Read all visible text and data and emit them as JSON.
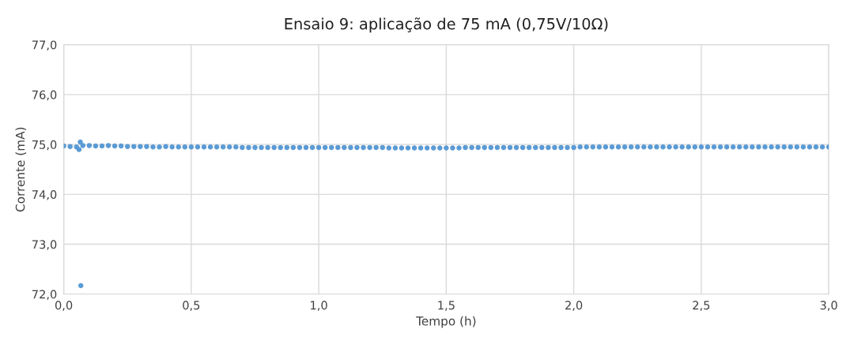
{
  "chart_data": {
    "type": "scatter",
    "title": "Ensaio 9: aplicação de 75 mA (0,75V/10Ω)",
    "xlabel": "Tempo (h)",
    "ylabel": "Corrente (mA)",
    "xlim": [
      0,
      3.0
    ],
    "ylim": [
      72.0,
      77.0
    ],
    "xticks": [
      {
        "value": 0,
        "label": "0,0"
      },
      {
        "value": 0.5,
        "label": "0,5"
      },
      {
        "value": 1.0,
        "label": "1,0"
      },
      {
        "value": 1.5,
        "label": "1,5"
      },
      {
        "value": 2.0,
        "label": "2,0"
      },
      {
        "value": 2.5,
        "label": "2,5"
      },
      {
        "value": 3.0,
        "label": "3,0"
      }
    ],
    "yticks": [
      {
        "value": 72,
        "label": "72,0"
      },
      {
        "value": 73,
        "label": "73,0"
      },
      {
        "value": 74,
        "label": "74,0"
      },
      {
        "value": 75,
        "label": "75,0"
      },
      {
        "value": 76,
        "label": "76,0"
      },
      {
        "value": 77,
        "label": "77,0"
      }
    ],
    "grid": true,
    "marker": "circle",
    "series": [
      {
        "color": "#5b9bd5",
        "x": [
          0,
          0.025,
          0.05,
          0.06,
          0.065,
          0.067,
          0.075,
          0.1,
          0.125,
          0.15,
          0.175,
          0.2,
          0.225,
          0.25,
          0.275,
          0.3,
          0.325,
          0.35,
          0.375,
          0.4,
          0.425,
          0.45,
          0.475,
          0.5,
          0.525,
          0.55,
          0.575,
          0.6,
          0.625,
          0.65,
          0.675,
          0.7,
          0.725,
          0.75,
          0.775,
          0.8,
          0.825,
          0.85,
          0.875,
          0.9,
          0.925,
          0.95,
          0.975,
          1.0,
          1.025,
          1.05,
          1.075,
          1.1,
          1.125,
          1.15,
          1.175,
          1.2,
          1.225,
          1.25,
          1.275,
          1.3,
          1.325,
          1.35,
          1.375,
          1.4,
          1.425,
          1.45,
          1.475,
          1.5,
          1.525,
          1.55,
          1.575,
          1.6,
          1.625,
          1.65,
          1.675,
          1.7,
          1.725,
          1.75,
          1.775,
          1.8,
          1.825,
          1.85,
          1.875,
          1.9,
          1.925,
          1.95,
          1.975,
          2.0,
          2.025,
          2.05,
          2.075,
          2.1,
          2.125,
          2.15,
          2.175,
          2.2,
          2.225,
          2.25,
          2.275,
          2.3,
          2.325,
          2.35,
          2.375,
          2.4,
          2.425,
          2.45,
          2.475,
          2.5,
          2.525,
          2.55,
          2.575,
          2.6,
          2.625,
          2.65,
          2.675,
          2.7,
          2.725,
          2.75,
          2.775,
          2.8,
          2.825,
          2.85,
          2.875,
          2.9,
          2.925,
          2.95,
          2.975,
          3.0
        ],
        "values": [
          74.97,
          74.96,
          74.95,
          74.9,
          75.05,
          72.17,
          74.98,
          74.98,
          74.97,
          74.97,
          74.98,
          74.97,
          74.97,
          74.96,
          74.96,
          74.96,
          74.96,
          74.95,
          74.95,
          74.96,
          74.95,
          74.95,
          74.95,
          74.95,
          74.95,
          74.95,
          74.95,
          74.95,
          74.95,
          74.95,
          74.95,
          74.94,
          74.94,
          74.94,
          74.94,
          74.94,
          74.94,
          74.94,
          74.94,
          74.94,
          74.94,
          74.94,
          74.94,
          74.94,
          74.94,
          74.94,
          74.94,
          74.94,
          74.94,
          74.94,
          74.94,
          74.94,
          74.94,
          74.94,
          74.93,
          74.93,
          74.93,
          74.93,
          74.93,
          74.93,
          74.93,
          74.93,
          74.93,
          74.93,
          74.93,
          74.93,
          74.94,
          74.94,
          74.94,
          74.94,
          74.94,
          74.94,
          74.94,
          74.94,
          74.94,
          74.94,
          74.94,
          74.94,
          74.94,
          74.94,
          74.94,
          74.94,
          74.94,
          74.94,
          74.95,
          74.95,
          74.95,
          74.95,
          74.95,
          74.95,
          74.95,
          74.95,
          74.95,
          74.95,
          74.95,
          74.95,
          74.95,
          74.95,
          74.95,
          74.95,
          74.95,
          74.95,
          74.95,
          74.95,
          74.95,
          74.95,
          74.95,
          74.95,
          74.95,
          74.95,
          74.95,
          74.95,
          74.95,
          74.95,
          74.95,
          74.95,
          74.95,
          74.95,
          74.95,
          74.95,
          74.95,
          74.95,
          74.95,
          74.95
        ]
      }
    ]
  }
}
